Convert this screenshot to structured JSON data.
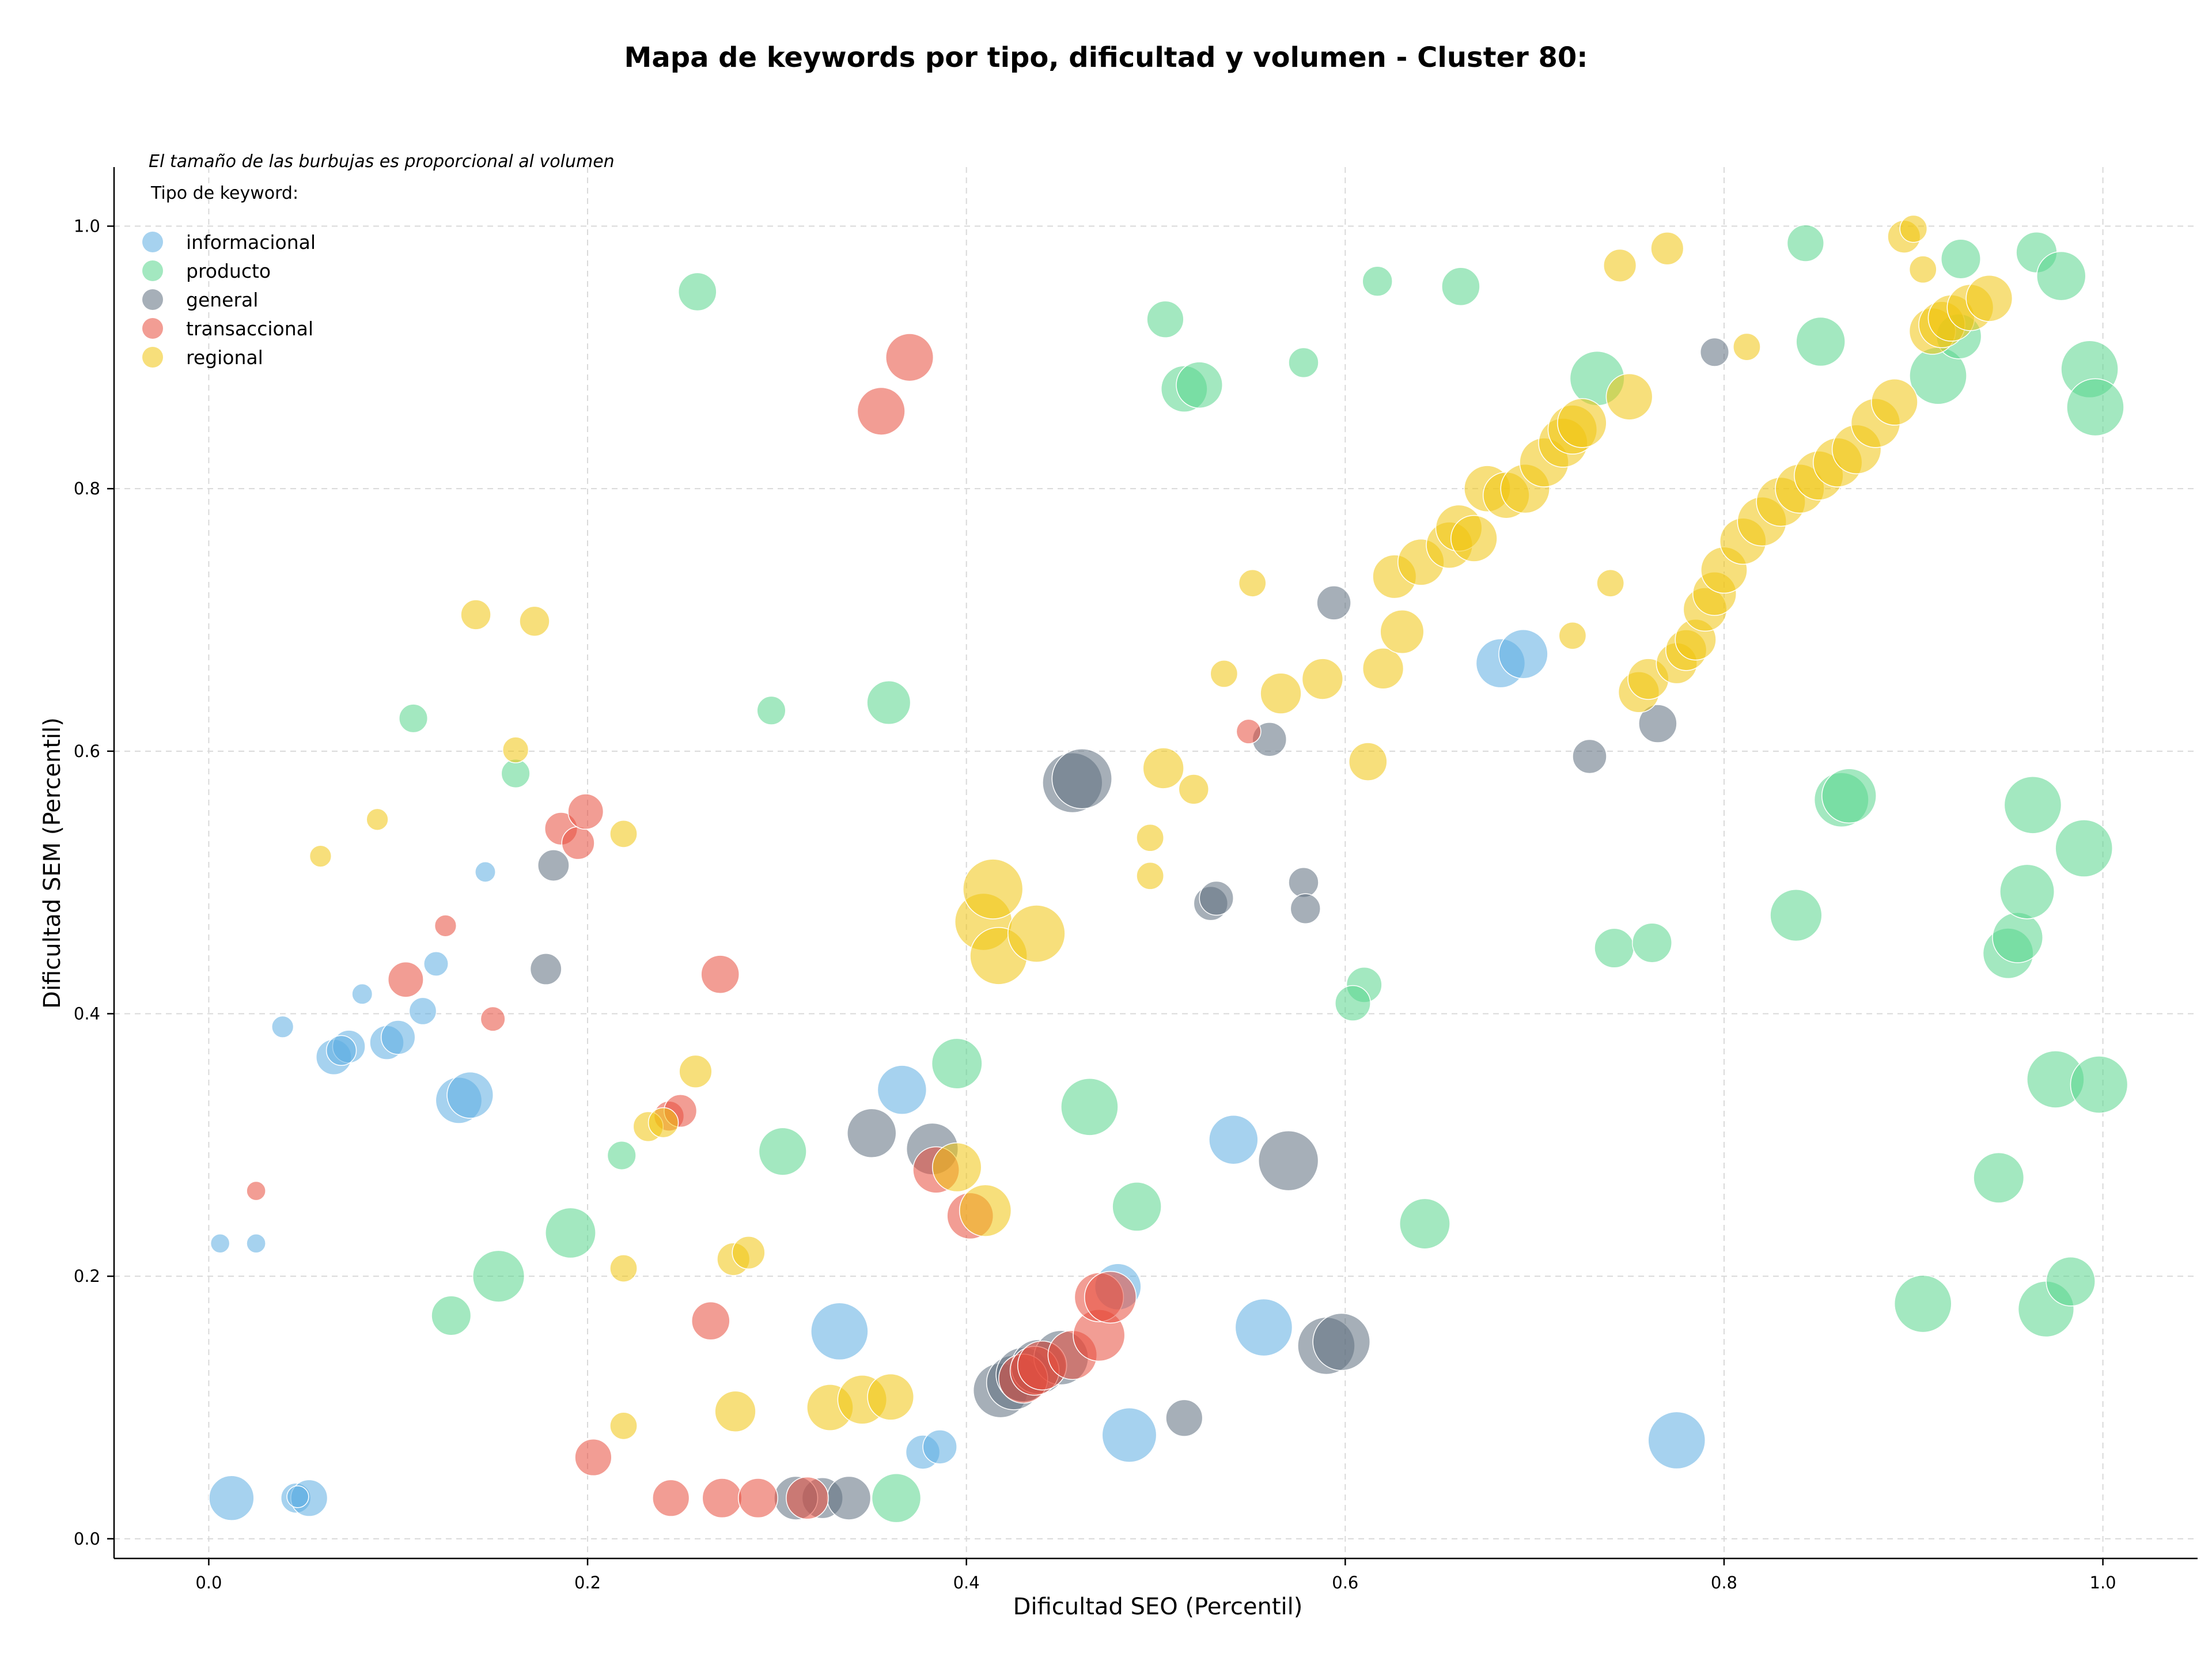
{
  "chart_data": {
    "type": "scatter",
    "title": "Mapa de keywords por tipo, dificultad y volumen - Cluster 80:",
    "xlabel": "Dificultad SEO (Percentil)",
    "ylabel": "Dificultad SEM (Percentil)",
    "xlim": [
      -0.05,
      1.05
    ],
    "ylim": [
      -0.015,
      1.045
    ],
    "xticks": [
      "0.0",
      "0.2",
      "0.4",
      "0.6",
      "0.8",
      "1.0"
    ],
    "yticks": [
      "0.0",
      "0.2",
      "0.4",
      "0.6",
      "0.8",
      "1.0"
    ],
    "grid": true,
    "legend_position": "top-left",
    "note": "El tamaño de las burbujas es proporcional al volumen",
    "legend_title": "Tipo de keyword:",
    "point_alpha": 0.55,
    "series": [
      {
        "name": "informacional",
        "color": "#5DADE2",
        "points": [
          [
            0.006,
            0.225,
            14
          ],
          [
            0.025,
            0.225,
            14
          ],
          [
            0.039,
            0.39,
            16
          ],
          [
            0.081,
            0.415,
            15
          ],
          [
            0.146,
            0.508,
            15
          ],
          [
            0.12,
            0.438,
            18
          ],
          [
            0.113,
            0.402,
            20
          ],
          [
            0.066,
            0.367,
            26
          ],
          [
            0.074,
            0.375,
            24
          ],
          [
            0.07,
            0.372,
            22
          ],
          [
            0.094,
            0.378,
            25
          ],
          [
            0.1,
            0.382,
            25
          ],
          [
            0.132,
            0.334,
            34
          ],
          [
            0.138,
            0.338,
            34
          ],
          [
            0.012,
            0.031,
            33
          ],
          [
            0.046,
            0.031,
            22
          ],
          [
            0.053,
            0.031,
            27
          ],
          [
            0.047,
            0.032,
            16
          ],
          [
            0.333,
            0.158,
            42
          ],
          [
            0.366,
            0.342,
            36
          ],
          [
            0.377,
            0.066,
            25
          ],
          [
            0.386,
            0.07,
            25
          ],
          [
            0.48,
            0.192,
            34
          ],
          [
            0.486,
            0.079,
            40
          ],
          [
            0.541,
            0.304,
            36
          ],
          [
            0.557,
            0.161,
            42
          ],
          [
            0.682,
            0.667,
            36
          ],
          [
            0.694,
            0.674,
            36
          ],
          [
            0.775,
            0.075,
            42
          ]
        ]
      },
      {
        "name": "producto",
        "color": "#58D68D",
        "points": [
          [
            0.258,
            0.95,
            28
          ],
          [
            0.108,
            0.625,
            21
          ],
          [
            0.162,
            0.583,
            21
          ],
          [
            0.218,
            0.292,
            21
          ],
          [
            0.297,
            0.631,
            21
          ],
          [
            0.359,
            0.637,
            32
          ],
          [
            0.128,
            0.17,
            29
          ],
          [
            0.153,
            0.2,
            38
          ],
          [
            0.191,
            0.233,
            37
          ],
          [
            0.303,
            0.295,
            35
          ],
          [
            0.363,
            0.031,
            36
          ],
          [
            0.395,
            0.362,
            37
          ],
          [
            0.465,
            0.329,
            42
          ],
          [
            0.49,
            0.253,
            36
          ],
          [
            0.505,
            0.929,
            27
          ],
          [
            0.515,
            0.876,
            34
          ],
          [
            0.523,
            0.879,
            34
          ],
          [
            0.578,
            0.896,
            22
          ],
          [
            0.617,
            0.958,
            22
          ],
          [
            0.61,
            0.422,
            26
          ],
          [
            0.604,
            0.408,
            26
          ],
          [
            0.661,
            0.954,
            28
          ],
          [
            0.642,
            0.24,
            37
          ],
          [
            0.733,
            0.884,
            40
          ],
          [
            0.742,
            0.45,
            29
          ],
          [
            0.762,
            0.454,
            29
          ],
          [
            0.838,
            0.475,
            38
          ],
          [
            0.843,
            0.987,
            27
          ],
          [
            0.851,
            0.912,
            36
          ],
          [
            0.862,
            0.563,
            40
          ],
          [
            0.866,
            0.566,
            40
          ],
          [
            0.905,
            0.179,
            42
          ],
          [
            0.913,
            0.886,
            42
          ],
          [
            0.925,
            0.975,
            29
          ],
          [
            0.924,
            0.916,
            33
          ],
          [
            0.945,
            0.275,
            37
          ],
          [
            0.95,
            0.446,
            37
          ],
          [
            0.955,
            0.458,
            37
          ],
          [
            0.96,
            0.493,
            40
          ],
          [
            0.963,
            0.559,
            42
          ],
          [
            0.965,
            0.98,
            30
          ],
          [
            0.97,
            0.175,
            41
          ],
          [
            0.975,
            0.35,
            42
          ],
          [
            0.978,
            0.962,
            36
          ],
          [
            0.983,
            0.196,
            36
          ],
          [
            0.99,
            0.526,
            42
          ],
          [
            0.993,
            0.891,
            42
          ],
          [
            0.996,
            0.862,
            42
          ],
          [
            0.998,
            0.346,
            42
          ]
        ]
      },
      {
        "name": "general",
        "color": "#5D6D7E",
        "points": [
          [
            0.182,
            0.513,
            23
          ],
          [
            0.178,
            0.434,
            23
          ],
          [
            0.324,
            0.031,
            30
          ],
          [
            0.31,
            0.031,
            32
          ],
          [
            0.338,
            0.031,
            32
          ],
          [
            0.35,
            0.309,
            36
          ],
          [
            0.382,
            0.297,
            38
          ],
          [
            0.418,
            0.113,
            40
          ],
          [
            0.425,
            0.119,
            40
          ],
          [
            0.43,
            0.125,
            40
          ],
          [
            0.438,
            0.131,
            40
          ],
          [
            0.45,
            0.138,
            40
          ],
          [
            0.456,
            0.576,
            44
          ],
          [
            0.461,
            0.579,
            44
          ],
          [
            0.515,
            0.092,
            27
          ],
          [
            0.529,
            0.484,
            25
          ],
          [
            0.532,
            0.488,
            25
          ],
          [
            0.56,
            0.609,
            25
          ],
          [
            0.57,
            0.288,
            44
          ],
          [
            0.578,
            0.5,
            22
          ],
          [
            0.579,
            0.48,
            22
          ],
          [
            0.59,
            0.147,
            42
          ],
          [
            0.598,
            0.15,
            42
          ],
          [
            0.594,
            0.713,
            25
          ],
          [
            0.729,
            0.596,
            25
          ],
          [
            0.765,
            0.621,
            28
          ],
          [
            0.795,
            0.904,
            21
          ]
        ]
      },
      {
        "name": "transaccional",
        "color": "#E74C3C",
        "points": [
          [
            0.025,
            0.265,
            14
          ],
          [
            0.104,
            0.426,
            26
          ],
          [
            0.125,
            0.467,
            16
          ],
          [
            0.15,
            0.396,
            18
          ],
          [
            0.186,
            0.541,
            24
          ],
          [
            0.195,
            0.53,
            24
          ],
          [
            0.199,
            0.554,
            26
          ],
          [
            0.203,
            0.062,
            27
          ],
          [
            0.244,
            0.031,
            27
          ],
          [
            0.243,
            0.322,
            22
          ],
          [
            0.249,
            0.326,
            24
          ],
          [
            0.27,
            0.43,
            28
          ],
          [
            0.265,
            0.166,
            28
          ],
          [
            0.271,
            0.031,
            29
          ],
          [
            0.29,
            0.031,
            29
          ],
          [
            0.316,
            0.031,
            31
          ],
          [
            0.355,
            0.859,
            35
          ],
          [
            0.37,
            0.9,
            35
          ],
          [
            0.384,
            0.281,
            34
          ],
          [
            0.402,
            0.246,
            34
          ],
          [
            0.43,
            0.122,
            36
          ],
          [
            0.436,
            0.128,
            36
          ],
          [
            0.44,
            0.132,
            36
          ],
          [
            0.456,
            0.14,
            36
          ],
          [
            0.47,
            0.155,
            38
          ],
          [
            0.47,
            0.184,
            36
          ],
          [
            0.476,
            0.184,
            38
          ],
          [
            0.549,
            0.615,
            18
          ]
        ]
      },
      {
        "name": "regional",
        "color": "#F1C40F",
        "points": [
          [
            0.059,
            0.52,
            16
          ],
          [
            0.089,
            0.548,
            16
          ],
          [
            0.141,
            0.704,
            22
          ],
          [
            0.172,
            0.699,
            22
          ],
          [
            0.162,
            0.601,
            19
          ],
          [
            0.219,
            0.537,
            20
          ],
          [
            0.219,
            0.206,
            20
          ],
          [
            0.219,
            0.086,
            20
          ],
          [
            0.232,
            0.314,
            22
          ],
          [
            0.24,
            0.317,
            22
          ],
          [
            0.257,
            0.356,
            24
          ],
          [
            0.277,
            0.213,
            24
          ],
          [
            0.285,
            0.218,
            24
          ],
          [
            0.278,
            0.097,
            30
          ],
          [
            0.328,
            0.1,
            34
          ],
          [
            0.345,
            0.106,
            36
          ],
          [
            0.36,
            0.108,
            34
          ],
          [
            0.395,
            0.283,
            36
          ],
          [
            0.409,
            0.47,
            42
          ],
          [
            0.414,
            0.495,
            44
          ],
          [
            0.417,
            0.444,
            42
          ],
          [
            0.41,
            0.25,
            38
          ],
          [
            0.437,
            0.461,
            42
          ],
          [
            0.497,
            0.534,
            20
          ],
          [
            0.497,
            0.505,
            20
          ],
          [
            0.504,
            0.587,
            30
          ],
          [
            0.52,
            0.571,
            22
          ],
          [
            0.536,
            0.659,
            20
          ],
          [
            0.551,
            0.728,
            20
          ],
          [
            0.566,
            0.644,
            30
          ],
          [
            0.588,
            0.655,
            30
          ],
          [
            0.612,
            0.592,
            28
          ],
          [
            0.62,
            0.663,
            30
          ],
          [
            0.626,
            0.733,
            32
          ],
          [
            0.63,
            0.691,
            32
          ],
          [
            0.64,
            0.744,
            34
          ],
          [
            0.655,
            0.757,
            34
          ],
          [
            0.66,
            0.77,
            34
          ],
          [
            0.668,
            0.762,
            34
          ],
          [
            0.675,
            0.8,
            34
          ],
          [
            0.685,
            0.795,
            34
          ],
          [
            0.695,
            0.8,
            36
          ],
          [
            0.705,
            0.82,
            36
          ],
          [
            0.715,
            0.835,
            36
          ],
          [
            0.72,
            0.845,
            36
          ],
          [
            0.725,
            0.85,
            36
          ],
          [
            0.72,
            0.688,
            20
          ],
          [
            0.74,
            0.728,
            20
          ],
          [
            0.745,
            0.97,
            24
          ],
          [
            0.75,
            0.87,
            34
          ],
          [
            0.77,
            0.983,
            24
          ],
          [
            0.755,
            0.645,
            30
          ],
          [
            0.76,
            0.655,
            30
          ],
          [
            0.775,
            0.667,
            30
          ],
          [
            0.78,
            0.677,
            30
          ],
          [
            0.785,
            0.685,
            30
          ],
          [
            0.79,
            0.708,
            32
          ],
          [
            0.795,
            0.72,
            32
          ],
          [
            0.8,
            0.738,
            34
          ],
          [
            0.81,
            0.76,
            34
          ],
          [
            0.82,
            0.775,
            36
          ],
          [
            0.83,
            0.79,
            36
          ],
          [
            0.84,
            0.8,
            36
          ],
          [
            0.85,
            0.81,
            36
          ],
          [
            0.86,
            0.82,
            36
          ],
          [
            0.87,
            0.83,
            36
          ],
          [
            0.88,
            0.85,
            36
          ],
          [
            0.89,
            0.866,
            34
          ],
          [
            0.895,
            0.992,
            24
          ],
          [
            0.9,
            0.998,
            20
          ],
          [
            0.905,
            0.967,
            20
          ],
          [
            0.91,
            0.92,
            34
          ],
          [
            0.915,
            0.925,
            34
          ],
          [
            0.92,
            0.93,
            34
          ],
          [
            0.93,
            0.938,
            34
          ],
          [
            0.94,
            0.945,
            34
          ],
          [
            0.812,
            0.908,
            20
          ]
        ]
      }
    ]
  }
}
